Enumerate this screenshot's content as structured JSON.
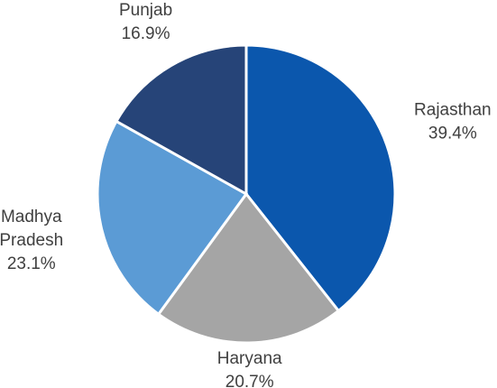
{
  "chart_data": {
    "type": "pie",
    "categories": [
      "Rajasthan",
      "Haryana",
      "Madhya Pradesh",
      "Punjab"
    ],
    "values": [
      39.4,
      20.7,
      23.1,
      16.9
    ],
    "value_labels": [
      "39.4%",
      "20.7%",
      "23.1%",
      "16.9%"
    ],
    "colors": [
      "#0b57ad",
      "#a5a5a5",
      "#5b9bd5",
      "#264478"
    ]
  }
}
